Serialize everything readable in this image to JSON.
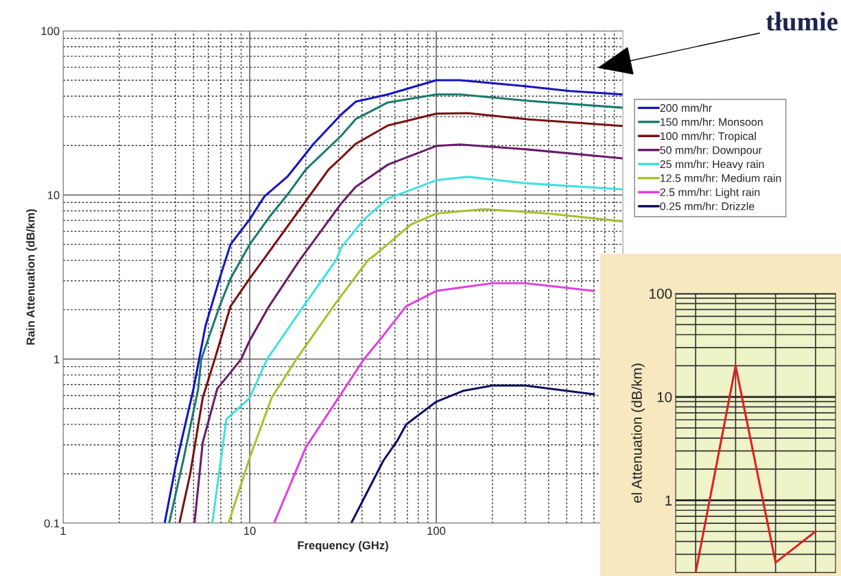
{
  "chart_data": [
    {
      "type": "line",
      "xlabel": "Frequency (GHz)",
      "ylabel": "Rain Attenuation (dB/km)",
      "log": "xy",
      "xlim": [
        1,
        1000
      ],
      "ylim": [
        0.1,
        100
      ],
      "xticks": [
        1,
        10,
        100
      ],
      "yticks": [
        0.1,
        1,
        10,
        100
      ],
      "grid": true,
      "legend": "right",
      "line_style": "solid",
      "annotations": [
        "tłumie"
      ],
      "series": [
        {
          "name": "200 mm/hr",
          "color": "#1414c0",
          "x": [
            3.5,
            4,
            5,
            5.8,
            6.9,
            7.9,
            10,
            12,
            16,
            22,
            31,
            37,
            55,
            100,
            134,
            300,
            520,
            1000
          ],
          "values": [
            0.1,
            0.22,
            0.66,
            1.6,
            3.1,
            5.0,
            7.1,
            9.8,
            13,
            20.5,
            31,
            37,
            41,
            50,
            50,
            46,
            43,
            41
          ]
        },
        {
          "name": "150 mm/hr: Monsoon",
          "color": "#1a7a6e",
          "x": [
            3.7,
            4.4,
            5.3,
            5.5,
            6.9,
            7.9,
            10,
            12.7,
            16,
            20,
            31,
            37,
            55,
            100,
            134,
            300,
            1000
          ],
          "values": [
            0.1,
            0.24,
            0.66,
            1,
            2.1,
            3.1,
            5.0,
            7.3,
            10.1,
            14.3,
            23,
            29,
            36.6,
            41,
            41,
            37.6,
            34
          ]
        },
        {
          "name": "100 mm/hr: Tropical",
          "color": "#7a1010",
          "x": [
            4.2,
            4.8,
            5.6,
            6.5,
            7.9,
            10,
            12.7,
            20,
            26.5,
            31,
            37,
            55,
            100,
            148,
            300,
            1000
          ],
          "values": [
            0.1,
            0.2,
            0.58,
            1,
            2.1,
            3.1,
            4.5,
            9.2,
            14.3,
            16.9,
            20.5,
            26.5,
            31.3,
            31.5,
            29,
            26.3
          ]
        },
        {
          "name": "50 mm/hr: Downpour",
          "color": "#6a1a6a",
          "x": [
            5.06,
            5.6,
            6.7,
            8.1,
            9,
            10,
            12.7,
            18.5,
            31,
            37,
            55,
            100,
            134,
            300,
            1000
          ],
          "values": [
            0.1,
            0.31,
            0.66,
            0.86,
            1,
            1.3,
            2.1,
            4.0,
            8.9,
            11.2,
            15.3,
            19.9,
            20.3,
            19,
            16.7
          ]
        },
        {
          "name": "25 mm/hr: Heavy rain",
          "color": "#40e0e0",
          "x": [
            6.3,
            7.5,
            10,
            12.4,
            20,
            29,
            31,
            41,
            55,
            100,
            148,
            300,
            1000
          ],
          "values": [
            0.1,
            0.43,
            0.58,
            1,
            2.2,
            4.0,
            4.8,
            7.1,
            9.5,
            12.3,
            12.9,
            11.8,
            10.8
          ]
        },
        {
          "name": "12.5 mm/hr: Medium rain",
          "color": "#a8c030",
          "x": [
            7.7,
            10,
            13.1,
            17.8,
            29,
            43,
            48,
            73,
            100,
            180,
            400,
            1000
          ],
          "values": [
            0.1,
            0.25,
            0.58,
            1,
            2.2,
            4.0,
            4.4,
            6.6,
            7.7,
            8.2,
            7.7,
            6.9
          ]
        },
        {
          "name": "2.5 mm/hr: Light rain",
          "color": "#e040e0",
          "x": [
            13.5,
            20,
            41,
            52,
            62,
            69,
            100,
            200,
            300,
            700
          ],
          "values": [
            0.1,
            0.29,
            1,
            1.39,
            1.8,
            2.1,
            2.6,
            2.9,
            2.9,
            2.6
          ]
        },
        {
          "name": "0.25 mm/hr: Drizzle",
          "color": "#101060",
          "x": [
            35,
            52,
            62,
            69,
            100,
            139,
            200,
            300,
            700
          ],
          "values": [
            0.1,
            0.24,
            0.32,
            0.4,
            0.55,
            0.64,
            0.69,
            0.69,
            0.61
          ]
        }
      ]
    },
    {
      "type": "line",
      "ylabel": "el Attenuation (dB/km)",
      "log": "y",
      "ylim": [
        0.2,
        100
      ],
      "yticks": [
        1,
        10,
        100
      ],
      "grid": true,
      "tick_labels": "y",
      "categories": [
        null,
        null,
        null,
        null
      ],
      "series": [
        {
          "color": "#e02020",
          "values": [
            0.2,
            20,
            0.25,
            0.5
          ]
        }
      ]
    }
  ]
}
